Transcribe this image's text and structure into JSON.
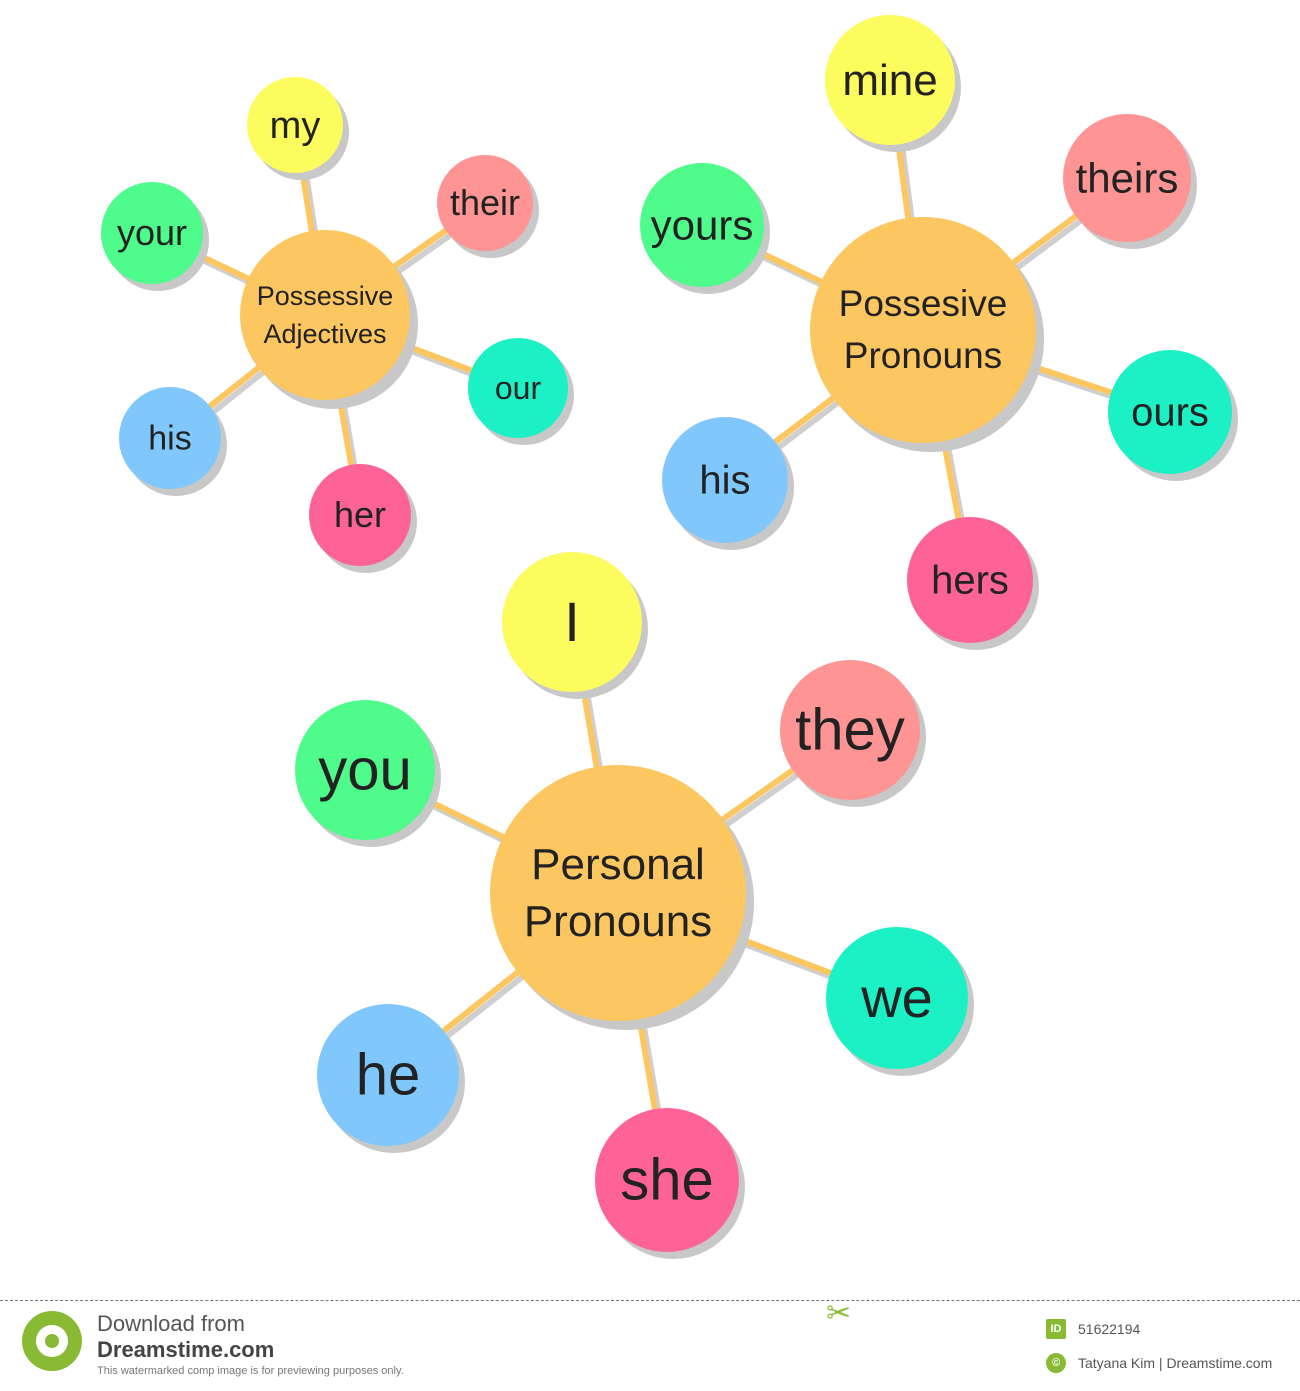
{
  "diagrams": [
    {
      "center": {
        "lines": [
          "Possessive",
          "Adjectives"
        ],
        "color": "#fcc660"
      },
      "items": [
        {
          "label": "my",
          "color": "#fdfc5f"
        },
        {
          "label": "their",
          "color": "#fe9494"
        },
        {
          "label": "your",
          "color": "#4efb8b"
        },
        {
          "label": "our",
          "color": "#1cf1c6"
        },
        {
          "label": "his",
          "color": "#80c7fb"
        },
        {
          "label": "her",
          "color": "#fe6398"
        }
      ]
    },
    {
      "center": {
        "lines": [
          "Possesive",
          "Pronouns"
        ],
        "color": "#fcc660"
      },
      "items": [
        {
          "label": "mine",
          "color": "#fdfc5f"
        },
        {
          "label": "theirs",
          "color": "#fe9494"
        },
        {
          "label": "yours",
          "color": "#4efb8b"
        },
        {
          "label": "ours",
          "color": "#1cf1c6"
        },
        {
          "label": "his",
          "color": "#80c7fb"
        },
        {
          "label": "hers",
          "color": "#fe6398"
        }
      ]
    },
    {
      "center": {
        "lines": [
          "Personal",
          "Pronouns"
        ],
        "color": "#fcc660"
      },
      "items": [
        {
          "label": "I",
          "color": "#fdfc5f"
        },
        {
          "label": "they",
          "color": "#fe9494"
        },
        {
          "label": "you",
          "color": "#4efb8b"
        },
        {
          "label": "we",
          "color": "#1cf1c6"
        },
        {
          "label": "he",
          "color": "#80c7fb"
        },
        {
          "label": "she",
          "color": "#fe6398"
        }
      ]
    }
  ],
  "footer": {
    "download_line": "Download from",
    "site": "Dreamstime.com",
    "note": "This watermarked comp image is for previewing purposes only.",
    "id_badge": "ID",
    "image_id": "51622194",
    "copyright_badge": "©",
    "credit": "Tatyana Kim | Dreamstime.com"
  }
}
